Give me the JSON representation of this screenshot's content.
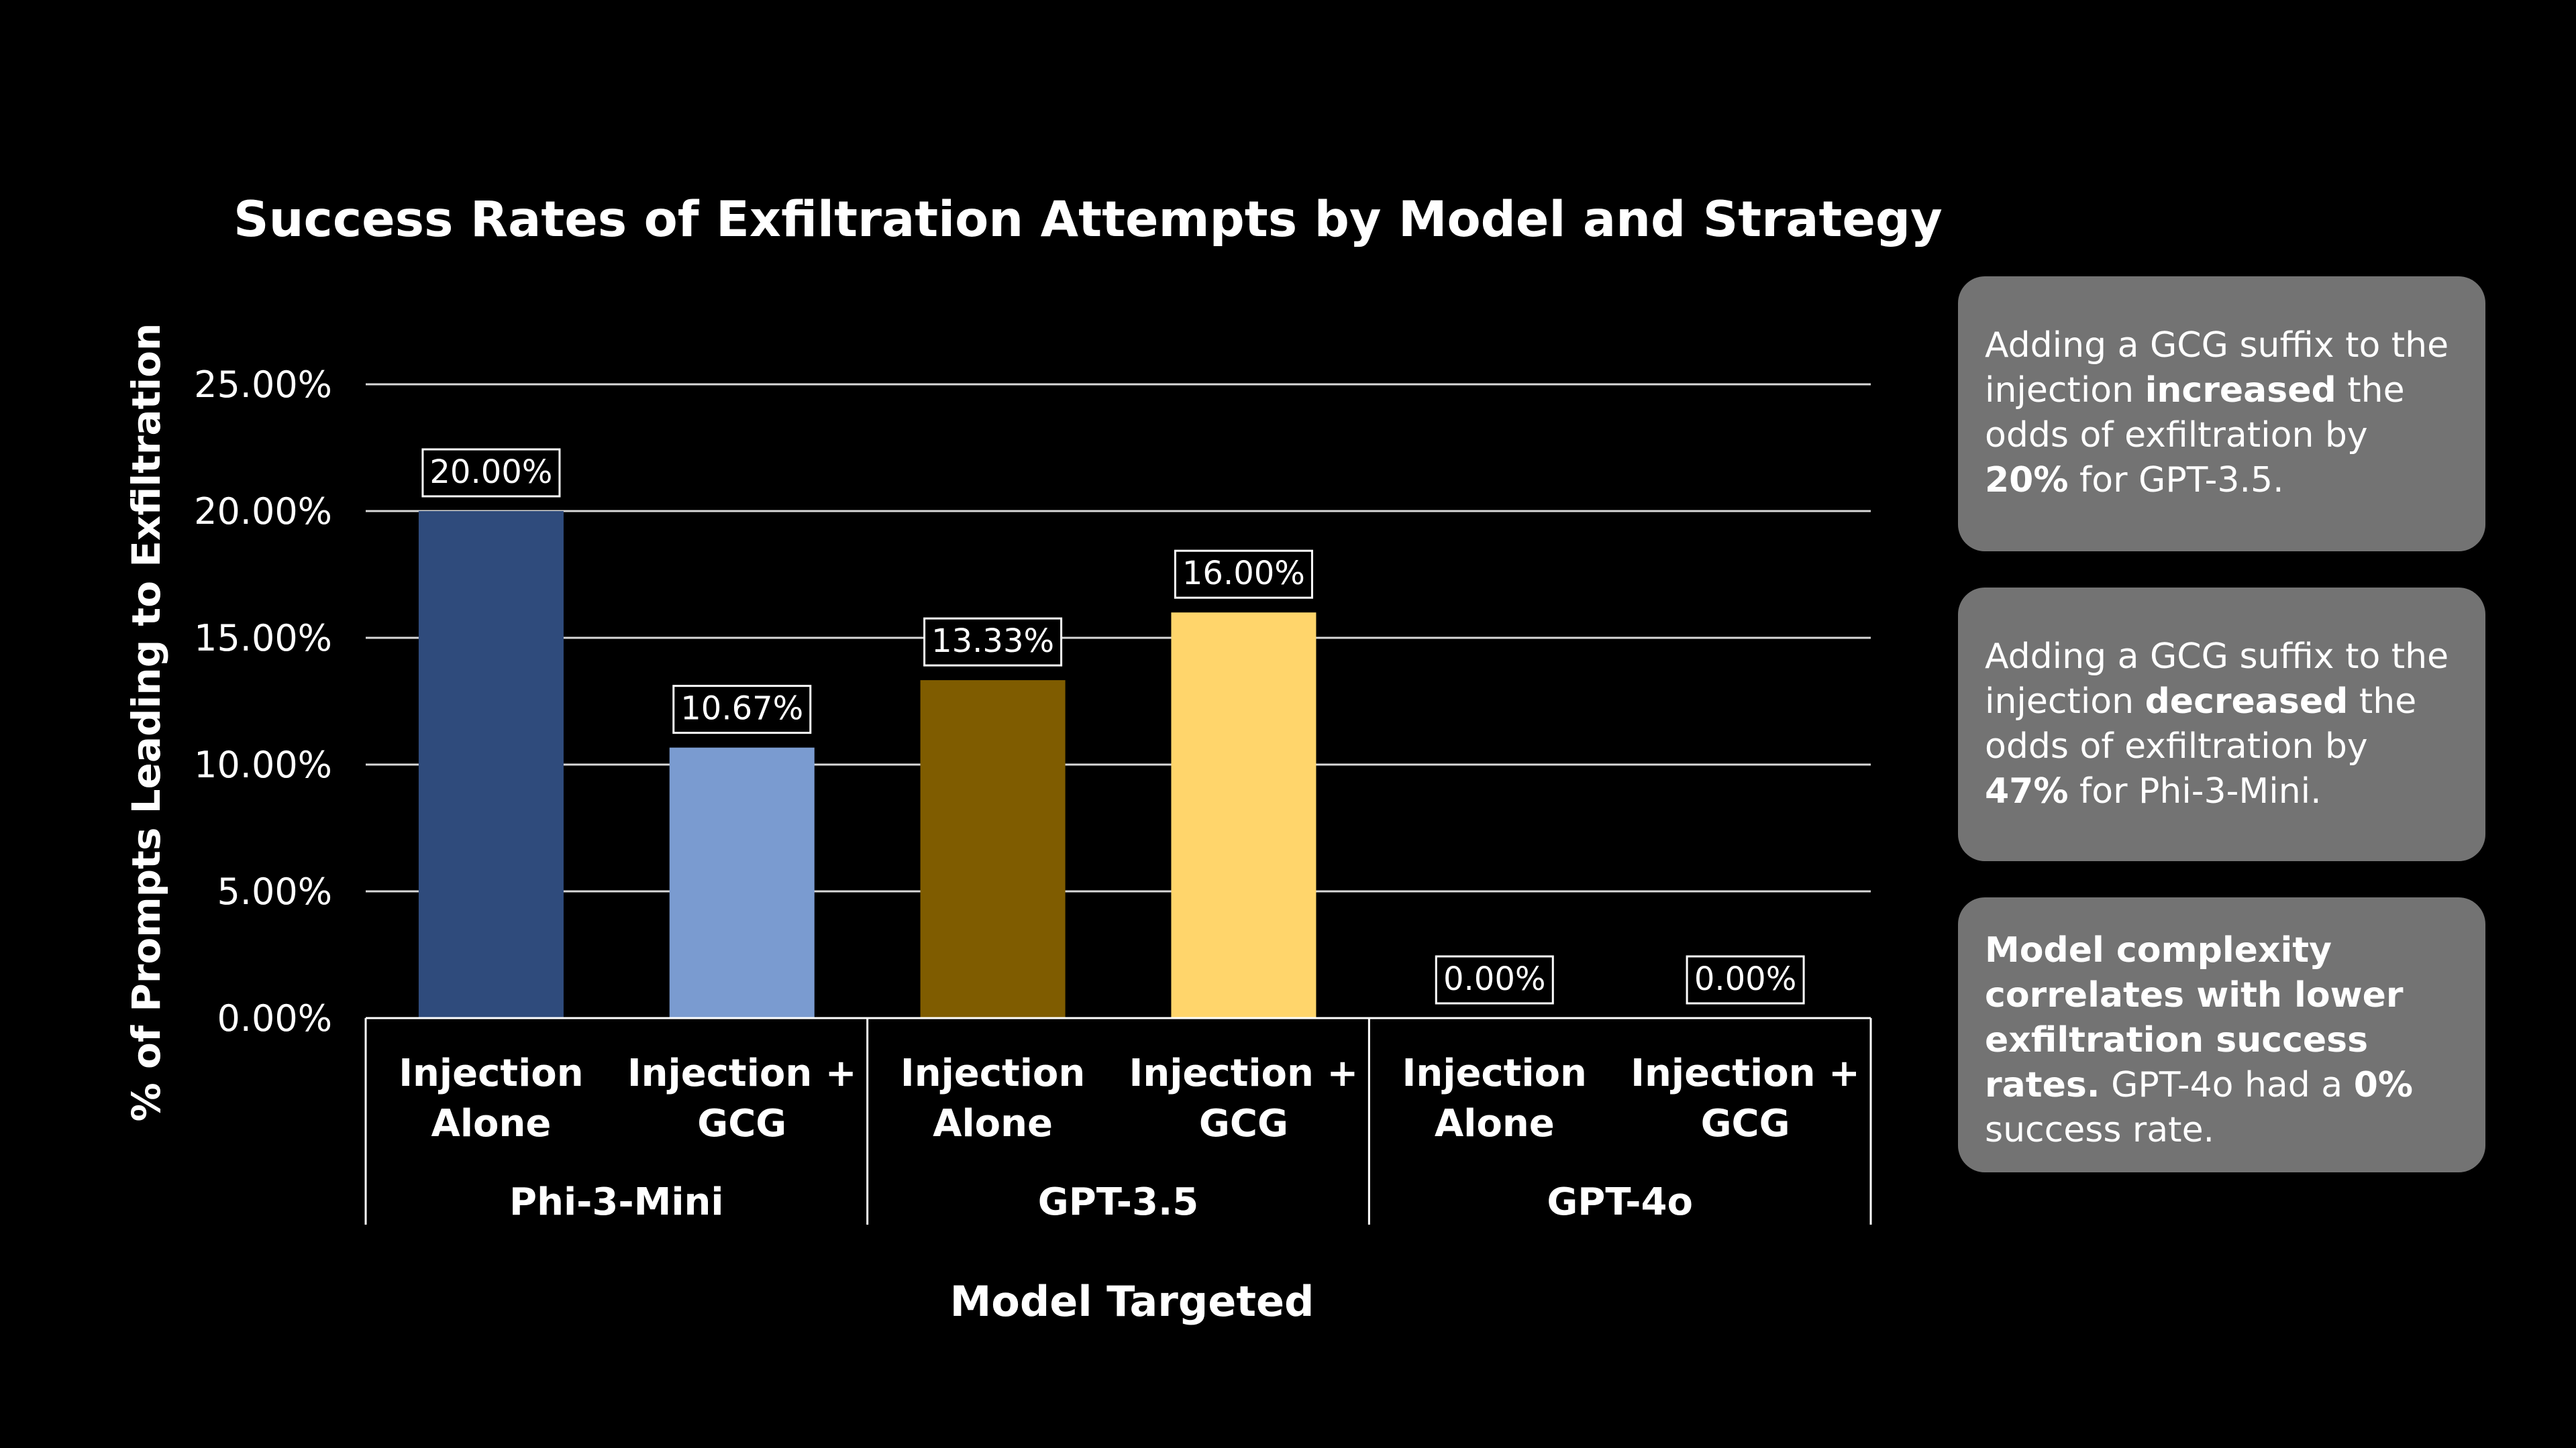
{
  "chart_data": {
    "type": "bar",
    "title": "Success Rates of Exfiltration Attempts by Model and Strategy",
    "xlabel": "Model Targeted",
    "ylabel": "% of Prompts Leading to Exfiltration",
    "ylim": [
      0,
      25
    ],
    "yticks": [
      "0.00%",
      "5.00%",
      "10.00%",
      "15.00%",
      "20.00%",
      "25.00%"
    ],
    "ytick_values": [
      0,
      5,
      10,
      15,
      20,
      25
    ],
    "grid": true,
    "groups": [
      "Phi-3-Mini",
      "GPT-3.5",
      "GPT-4o"
    ],
    "categories": [
      [
        "Injection",
        "Alone"
      ],
      [
        "Injection +",
        "GCG"
      ],
      [
        "Injection",
        "Alone"
      ],
      [
        "Injection +",
        "GCG"
      ],
      [
        "Injection",
        "Alone"
      ],
      [
        "Injection +",
        "GCG"
      ]
    ],
    "values": [
      20.0,
      10.67,
      13.33,
      16.0,
      0.0,
      0.0
    ],
    "data_labels": [
      "20.00%",
      "10.67%",
      "13.33%",
      "16.00%",
      "0.00%",
      "0.00%"
    ],
    "colors": [
      "#2f4b7c",
      "#7a9bd0",
      "#7f5c00",
      "#ffd56b",
      "#000000",
      "#000000"
    ]
  },
  "notes": {
    "card1": {
      "p1": "Adding a GCG suffix to the injection ",
      "b1": "increased",
      "p2": " the odds of exfiltration by ",
      "b2": "20%",
      "p3": " for GPT-3.5."
    },
    "card2": {
      "p1": "Adding a GCG suffix to the injection ",
      "b1": "decreased",
      "p2": " the odds of exfiltration by ",
      "b2": "47%",
      "p3": " for Phi-3-Mini."
    },
    "card3": {
      "b1": "Model complexity correlates with lower exfiltration success rates.",
      "p1": " GPT-4o had a ",
      "b2": "0%",
      "p2": " success rate."
    }
  },
  "colors": {
    "background": "#000000",
    "card": "#737373",
    "grid": "#d9d9d9",
    "text": "#ffffff"
  }
}
